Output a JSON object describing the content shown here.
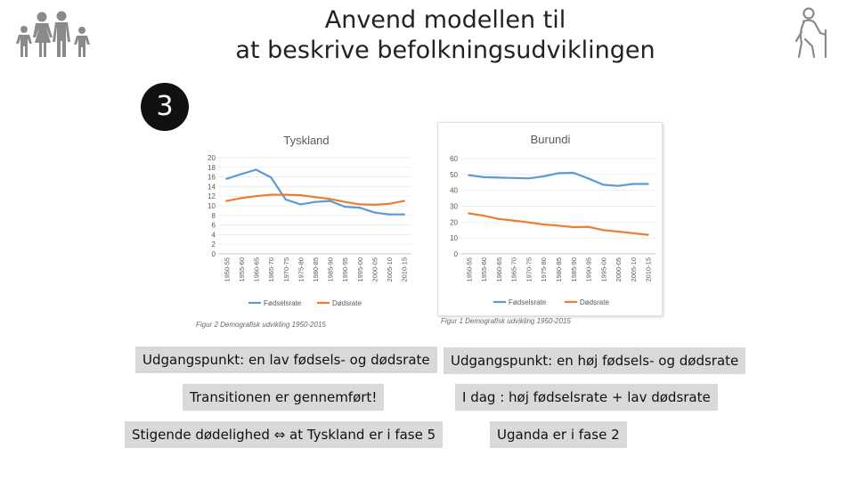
{
  "slide": {
    "title_line1": "Anvend modellen til",
    "title_line2": "at beskrive  befolkningsudviklingen",
    "badge": "3",
    "icons": [
      "family-icon",
      "elderly-person-icon"
    ]
  },
  "boxes": {
    "left": [
      "Udgangspunkt: en lav fødsels- og dødsrate",
      "Transitionen er gennemført!",
      "Stigende dødelighed ⇔ at Tyskland er i fase 5"
    ],
    "right": [
      "Udgangspunkt: en høj fødsels- og dødsrate",
      "I dag : høj fødselsrate + lav dødsrate",
      "Uganda er i fase 2"
    ]
  },
  "captions": {
    "left": "Figur 2 Demografisk udvikling 1950-2015",
    "right": "Figur 1 Demografisk udvikling 1950-2015"
  },
  "colors": {
    "birth": "#5b9bd5",
    "death": "#ed7d31",
    "badge": "#111111",
    "box": "#d9d9d9"
  },
  "chart_data": [
    {
      "type": "line",
      "title": "Tyskland",
      "categories": [
        "1950-55",
        "1955-60",
        "1960-65",
        "1965-70",
        "1970-75",
        "1975-80",
        "1980-85",
        "1985-90",
        "1990-95",
        "1995-00",
        "2000-05",
        "2005-10",
        "2010-15"
      ],
      "ylim": [
        0,
        20
      ],
      "yticks": [
        0,
        2,
        4,
        6,
        8,
        10,
        12,
        14,
        16,
        18,
        20
      ],
      "series": [
        {
          "name": "Fødselsrate",
          "values": [
            15.6,
            16.6,
            17.5,
            15.9,
            11.3,
            10.3,
            10.8,
            11.0,
            9.8,
            9.6,
            8.6,
            8.2,
            8.2
          ]
        },
        {
          "name": "Dødsrate",
          "values": [
            11.0,
            11.6,
            12.0,
            12.3,
            12.3,
            12.2,
            11.8,
            11.4,
            10.8,
            10.3,
            10.2,
            10.4,
            11.0
          ]
        }
      ],
      "legend": "bottom"
    },
    {
      "type": "line",
      "title": "Burundi",
      "categories": [
        "1950-55",
        "1955-60",
        "1960-65",
        "1965-70",
        "1970-75",
        "1975-80",
        "1980-85",
        "1985-90",
        "1990-95",
        "1995-00",
        "2000-05",
        "2005-10",
        "2010-15"
      ],
      "ylim": [
        0,
        60
      ],
      "yticks": [
        0,
        10,
        20,
        30,
        40,
        50,
        60
      ],
      "series": [
        {
          "name": "Fødselsrate",
          "values": [
            49.5,
            48.3,
            48.0,
            47.8,
            47.5,
            48.8,
            50.8,
            51.0,
            47.5,
            43.5,
            42.8,
            44.0,
            44.0
          ]
        },
        {
          "name": "Dødsrate",
          "values": [
            25.5,
            24.0,
            22.0,
            21.0,
            19.8,
            18.5,
            17.8,
            16.8,
            17.0,
            15.0,
            14.0,
            13.0,
            12.0
          ]
        }
      ],
      "legend": "bottom"
    }
  ]
}
